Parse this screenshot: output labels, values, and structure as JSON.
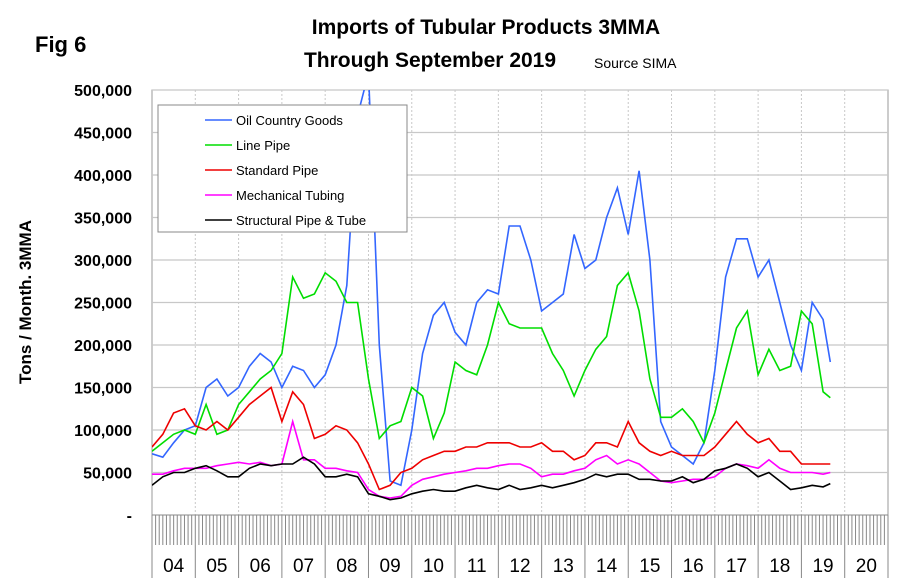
{
  "chart_data": {
    "type": "line",
    "fig_label": "Fig 6",
    "title": "Imports of Tubular Products 3MMA",
    "subtitle": "Through September 2019",
    "source": "Source SIMA",
    "ylabel": "Tons / Month. 3MMA",
    "xlabel": "",
    "ylim": [
      0,
      500000
    ],
    "yticks": [
      0,
      50000,
      100000,
      150000,
      200000,
      250000,
      300000,
      350000,
      400000,
      450000,
      500000
    ],
    "ytick_labels": [
      "-",
      "50,000",
      "100,000",
      "150,000",
      "200,000",
      "250,000",
      "300,000",
      "350,000",
      "400,000",
      "450,000",
      "500,000"
    ],
    "xrange": [
      "2004-01",
      "2020-12"
    ],
    "xtick_labels": [
      "04",
      "05",
      "06",
      "07",
      "08",
      "09",
      "10",
      "11",
      "12",
      "13",
      "14",
      "15",
      "16",
      "17",
      "18",
      "19",
      "20"
    ],
    "grid": true,
    "legend_placement": "top-left",
    "x": [
      "2004-01",
      "2004-04",
      "2004-07",
      "2004-10",
      "2005-01",
      "2005-04",
      "2005-07",
      "2005-10",
      "2006-01",
      "2006-04",
      "2006-07",
      "2006-10",
      "2007-01",
      "2007-04",
      "2007-07",
      "2007-10",
      "2008-01",
      "2008-04",
      "2008-07",
      "2008-10",
      "2009-01",
      "2009-04",
      "2009-07",
      "2009-10",
      "2010-01",
      "2010-04",
      "2010-07",
      "2010-10",
      "2011-01",
      "2011-04",
      "2011-07",
      "2011-10",
      "2012-01",
      "2012-04",
      "2012-07",
      "2012-10",
      "2013-01",
      "2013-04",
      "2013-07",
      "2013-10",
      "2014-01",
      "2014-04",
      "2014-07",
      "2014-10",
      "2015-01",
      "2015-04",
      "2015-07",
      "2015-10",
      "2016-01",
      "2016-04",
      "2016-07",
      "2016-10",
      "2017-01",
      "2017-04",
      "2017-07",
      "2017-10",
      "2018-01",
      "2018-04",
      "2018-07",
      "2018-10",
      "2019-01",
      "2019-04",
      "2019-07",
      "2019-09"
    ],
    "series": [
      {
        "name": "Oil Country Goods",
        "color": "#3366ff",
        "values": [
          72000,
          68000,
          85000,
          100000,
          105000,
          150000,
          160000,
          140000,
          150000,
          175000,
          190000,
          180000,
          150000,
          175000,
          170000,
          150000,
          165000,
          200000,
          270000,
          470000,
          520000,
          200000,
          40000,
          35000,
          100000,
          190000,
          235000,
          250000,
          215000,
          200000,
          250000,
          265000,
          260000,
          340000,
          340000,
          300000,
          240000,
          250000,
          260000,
          330000,
          290000,
          300000,
          350000,
          385000,
          330000,
          405000,
          300000,
          110000,
          80000,
          70000,
          60000,
          85000,
          170000,
          280000,
          325000,
          325000,
          280000,
          300000,
          250000,
          200000,
          170000,
          250000,
          230000,
          180000
        ]
      },
      {
        "name": "Line Pipe",
        "color": "#00dd00",
        "values": [
          75000,
          85000,
          95000,
          100000,
          95000,
          130000,
          95000,
          100000,
          130000,
          145000,
          160000,
          170000,
          190000,
          280000,
          255000,
          260000,
          285000,
          275000,
          250000,
          250000,
          160000,
          90000,
          105000,
          110000,
          150000,
          140000,
          90000,
          120000,
          180000,
          170000,
          165000,
          200000,
          250000,
          225000,
          220000,
          220000,
          220000,
          190000,
          170000,
          140000,
          170000,
          195000,
          210000,
          270000,
          285000,
          240000,
          160000,
          115000,
          115000,
          125000,
          110000,
          85000,
          120000,
          170000,
          220000,
          240000,
          165000,
          195000,
          170000,
          175000,
          240000,
          225000,
          145000,
          138000
        ]
      },
      {
        "name": "Standard Pipe",
        "color": "#ee0000",
        "values": [
          80000,
          95000,
          120000,
          125000,
          105000,
          100000,
          110000,
          100000,
          115000,
          130000,
          140000,
          150000,
          110000,
          145000,
          130000,
          90000,
          95000,
          105000,
          100000,
          85000,
          60000,
          30000,
          35000,
          50000,
          55000,
          65000,
          70000,
          75000,
          75000,
          80000,
          80000,
          85000,
          85000,
          85000,
          80000,
          80000,
          85000,
          75000,
          75000,
          65000,
          70000,
          85000,
          85000,
          80000,
          110000,
          85000,
          75000,
          70000,
          75000,
          70000,
          70000,
          70000,
          80000,
          95000,
          110000,
          95000,
          85000,
          90000,
          75000,
          75000,
          60000,
          60000,
          60000,
          60000
        ]
      },
      {
        "name": "Mechanical Tubing",
        "color": "#ff00ff",
        "values": [
          48000,
          48000,
          52000,
          55000,
          55000,
          55000,
          58000,
          60000,
          62000,
          60000,
          62000,
          58000,
          60000,
          110000,
          65000,
          65000,
          55000,
          55000,
          52000,
          50000,
          30000,
          22000,
          20000,
          22000,
          35000,
          42000,
          45000,
          48000,
          50000,
          52000,
          55000,
          55000,
          58000,
          60000,
          60000,
          55000,
          45000,
          48000,
          48000,
          52000,
          55000,
          65000,
          70000,
          60000,
          65000,
          60000,
          50000,
          40000,
          38000,
          40000,
          42000,
          42000,
          45000,
          55000,
          60000,
          58000,
          55000,
          65000,
          55000,
          50000,
          50000,
          50000,
          48000,
          50000
        ]
      },
      {
        "name": "Structural Pipe & Tube",
        "color": "#000000",
        "values": [
          35000,
          45000,
          50000,
          50000,
          55000,
          58000,
          52000,
          45000,
          45000,
          55000,
          60000,
          58000,
          60000,
          60000,
          68000,
          60000,
          45000,
          45000,
          48000,
          45000,
          25000,
          22000,
          18000,
          20000,
          25000,
          28000,
          30000,
          28000,
          28000,
          32000,
          35000,
          32000,
          30000,
          35000,
          30000,
          32000,
          35000,
          32000,
          35000,
          38000,
          42000,
          48000,
          45000,
          48000,
          48000,
          42000,
          42000,
          40000,
          40000,
          45000,
          38000,
          42000,
          52000,
          55000,
          60000,
          55000,
          45000,
          50000,
          40000,
          30000,
          32000,
          35000,
          33000,
          37000
        ]
      }
    ]
  }
}
